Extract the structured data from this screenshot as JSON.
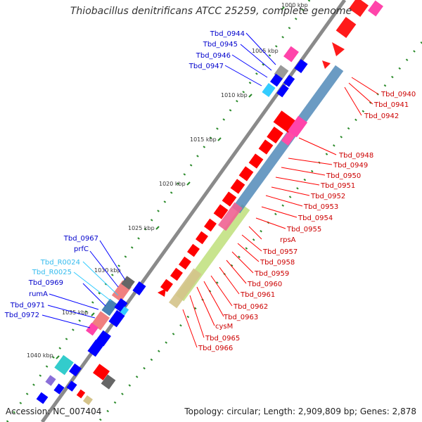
{
  "header": {
    "title": "Thiobacillus denitrificans ATCC 25259, complete genome"
  },
  "footer": {
    "accession": "Accession: NC_007404",
    "summary": "Topology: circular; Length: 2,909,809 bp; Genes: 2,878"
  },
  "ticks": [
    "1000 kbp",
    "1005 kbp",
    "1010 kbp",
    "1015 kbp",
    "1020 kbp",
    "1025 kbp",
    "1030 kbp",
    "1035 kbp",
    "1040 kbp"
  ],
  "labels_left": [
    "Tbd_0944",
    "Tbd_0945",
    "Tbd_0946",
    "Tbd_0947",
    "Tbd_0967",
    "prfC",
    "Tbd_R0024",
    "Tbd_R0025",
    "Tbd_0969",
    "rumA",
    "Tbd_0971",
    "Tbd_0972"
  ],
  "labels_right": [
    "Tbd_0940",
    "Tbd_0941",
    "Tbd_0942",
    "Tbd_0948",
    "Tbd_0949",
    "Tbd_0950",
    "Tbd_0951",
    "Tbd_0952",
    "Tbd_0953",
    "Tbd_0954",
    "Tbd_0955",
    "rpsA",
    "Tbd_0957",
    "Tbd_0958",
    "Tbd_0959",
    "Tbd_0960",
    "Tbd_0961",
    "Tbd_0962",
    "Tbd_0963",
    "cysM",
    "Tbd_0965",
    "Tbd_0966"
  ],
  "colors": {
    "forward": "#ff0000",
    "reverse": "#0000ff",
    "label_fwd": "#cc0000",
    "label_rev": "#0000cc",
    "rna": "#33ccff",
    "backbone": "#888888",
    "dots": "#228822"
  }
}
